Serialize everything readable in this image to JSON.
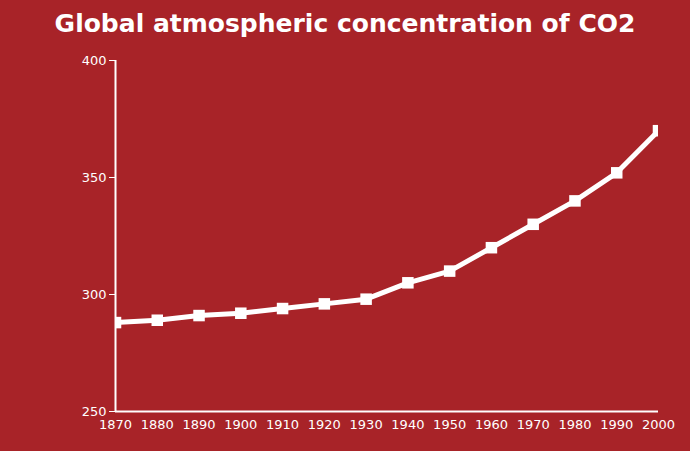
{
  "chart_data": {
    "type": "line",
    "title": "Global atmospheric concentration of CO2",
    "x": [
      1870,
      1880,
      1890,
      1900,
      1910,
      1920,
      1930,
      1940,
      1950,
      1960,
      1970,
      1980,
      1990,
      2000
    ],
    "values": [
      288,
      289,
      291,
      292,
      294,
      296,
      298,
      305,
      310,
      320,
      330,
      340,
      352,
      370
    ],
    "color": "#ffffff",
    "marker": "square",
    "xlim": [
      1870,
      2000
    ],
    "xticks": [
      1870,
      1880,
      1890,
      1900,
      1910,
      1920,
      1930,
      1940,
      1950,
      1960,
      1970,
      1980,
      1990,
      2000
    ],
    "ylim": [
      250,
      400
    ],
    "yticks": [
      250,
      300,
      350,
      400
    ],
    "grid": false
  }
}
